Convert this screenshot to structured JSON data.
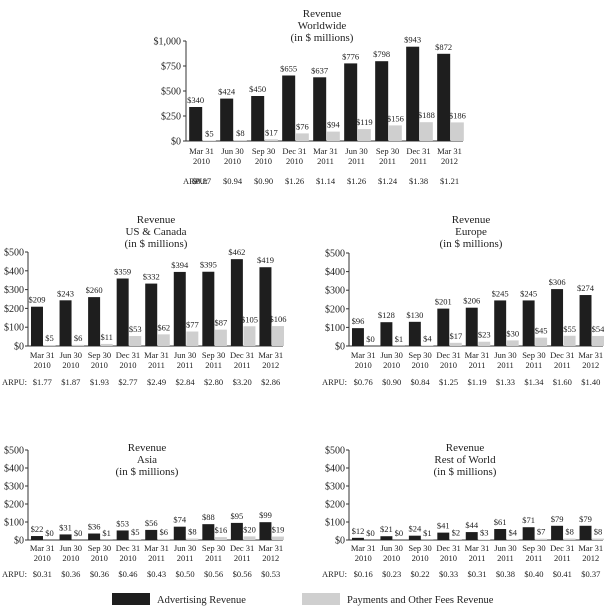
{
  "colors": {
    "advertising": "#1e1e1e",
    "payments": "#cfcfcf",
    "axis": "#333333"
  },
  "arpu_label": "ARPU:",
  "legend": [
    {
      "label": "Advertising Revenue",
      "color": "#1e1e1e"
    },
    {
      "label": "Payments and Other Fees Revenue",
      "color": "#cfcfcf"
    }
  ],
  "chart_data": [
    {
      "type": "bar",
      "title": [
        "Revenue",
        "Worldwide",
        "(in $ millions)"
      ],
      "categories": [
        [
          "Mar 31",
          "2010"
        ],
        [
          "Jun 30",
          "2010"
        ],
        [
          "Sep 30",
          "2010"
        ],
        [
          "Dec 31",
          "2010"
        ],
        [
          "Mar 31",
          "2011"
        ],
        [
          "Jun 30",
          "2011"
        ],
        [
          "Sep 30",
          "2011"
        ],
        [
          "Dec 31",
          "2011"
        ],
        [
          "Mar 31",
          "2012"
        ]
      ],
      "series": [
        {
          "name": "Advertising Revenue",
          "values": [
            340,
            424,
            450,
            655,
            637,
            776,
            798,
            943,
            872
          ],
          "labels": [
            "$340",
            "$424",
            "$450",
            "$655",
            "$637",
            "$776",
            "$798",
            "$943",
            "$872"
          ]
        },
        {
          "name": "Payments and Other Fees Revenue",
          "values": [
            5,
            8,
            17,
            76,
            94,
            119,
            156,
            188,
            186
          ],
          "labels": [
            "$5",
            "$8",
            "$17",
            "$76",
            "$94",
            "$119",
            "$156",
            "$188",
            "$186"
          ]
        }
      ],
      "ylim": [
        0,
        1000
      ],
      "yticks": [
        0,
        250,
        500,
        750,
        1000
      ],
      "ytick_labels": [
        "$0",
        "$250",
        "$500",
        "$750",
        "$1,000"
      ],
      "arpu": [
        "$0.87",
        "$0.94",
        "$0.90",
        "$1.26",
        "$1.14",
        "$1.26",
        "$1.24",
        "$1.38",
        "$1.21"
      ]
    },
    {
      "type": "bar",
      "title": [
        "Revenue",
        "US & Canada",
        "(in $ millions)"
      ],
      "categories": [
        [
          "Mar 31",
          "2010"
        ],
        [
          "Jun 30",
          "2010"
        ],
        [
          "Sep 30",
          "2010"
        ],
        [
          "Dec 31",
          "2010"
        ],
        [
          "Mar 31",
          "2011"
        ],
        [
          "Jun 30",
          "2011"
        ],
        [
          "Sep 30",
          "2011"
        ],
        [
          "Dec 31",
          "2011"
        ],
        [
          "Mar 31",
          "2012"
        ]
      ],
      "series": [
        {
          "name": "Advertising Revenue",
          "values": [
            209,
            243,
            260,
            359,
            332,
            394,
            395,
            462,
            419
          ],
          "labels": [
            "$209",
            "$243",
            "$260",
            "$359",
            "$332",
            "$394",
            "$395",
            "$462",
            "$419"
          ]
        },
        {
          "name": "Payments and Other Fees Revenue",
          "values": [
            5,
            6,
            11,
            53,
            62,
            77,
            87,
            105,
            106
          ],
          "labels": [
            "$5",
            "$6",
            "$11",
            "$53",
            "$62",
            "$77",
            "$87",
            "$105",
            "$106"
          ]
        }
      ],
      "ylim": [
        0,
        500
      ],
      "yticks": [
        0,
        100,
        200,
        300,
        400,
        500
      ],
      "ytick_labels": [
        "$0",
        "$100",
        "$200",
        "$300",
        "$400",
        "$500"
      ],
      "arpu": [
        "$1.77",
        "$1.87",
        "$1.93",
        "$2.77",
        "$2.49",
        "$2.84",
        "$2.80",
        "$3.20",
        "$2.86"
      ]
    },
    {
      "type": "bar",
      "title": [
        "Revenue",
        "Europe",
        "(in $ millions)"
      ],
      "categories": [
        [
          "Mar 31",
          "2010"
        ],
        [
          "Jun 30",
          "2010"
        ],
        [
          "Sep 30",
          "2010"
        ],
        [
          "Dec 31",
          "2010"
        ],
        [
          "Mar 31",
          "2011"
        ],
        [
          "Jun 30",
          "2011"
        ],
        [
          "Sep 30",
          "2011"
        ],
        [
          "Dec 31",
          "2011"
        ],
        [
          "Mar 31",
          "2012"
        ]
      ],
      "series": [
        {
          "name": "Advertising Revenue",
          "values": [
            96,
            128,
            130,
            201,
            206,
            245,
            245,
            306,
            274
          ],
          "labels": [
            "$96",
            "$128",
            "$130",
            "$201",
            "$206",
            "$245",
            "$245",
            "$306",
            "$274"
          ]
        },
        {
          "name": "Payments and Other Fees Revenue",
          "values": [
            0,
            1,
            4,
            17,
            23,
            30,
            45,
            55,
            54
          ],
          "labels": [
            "$0",
            "$1",
            "$4",
            "$17",
            "$23",
            "$30",
            "$45",
            "$55",
            "$54"
          ]
        }
      ],
      "ylim": [
        0,
        500
      ],
      "yticks": [
        0,
        100,
        200,
        300,
        400,
        500
      ],
      "ytick_labels": [
        "$0",
        "$100",
        "$200",
        "$300",
        "$400",
        "$500"
      ],
      "arpu": [
        "$0.76",
        "$0.90",
        "$0.84",
        "$1.25",
        "$1.19",
        "$1.33",
        "$1.34",
        "$1.60",
        "$1.40"
      ]
    },
    {
      "type": "bar",
      "title": [
        "Revenue",
        "Asia",
        "(in $ millions)"
      ],
      "categories": [
        [
          "Mar 31",
          "2010"
        ],
        [
          "Jun 30",
          "2010"
        ],
        [
          "Sep 30",
          "2010"
        ],
        [
          "Dec 31",
          "2010"
        ],
        [
          "Mar 31",
          "2011"
        ],
        [
          "Jun 30",
          "2011"
        ],
        [
          "Sep 30",
          "2011"
        ],
        [
          "Dec 31",
          "2011"
        ],
        [
          "Mar 31",
          "2012"
        ]
      ],
      "series": [
        {
          "name": "Advertising Revenue",
          "values": [
            22,
            31,
            36,
            53,
            56,
            74,
            88,
            95,
            99
          ],
          "labels": [
            "$22",
            "$31",
            "$36",
            "$53",
            "$56",
            "$74",
            "$88",
            "$95",
            "$99"
          ]
        },
        {
          "name": "Payments and Other Fees Revenue",
          "values": [
            0,
            0,
            1,
            5,
            6,
            8,
            16,
            20,
            19
          ],
          "labels": [
            "$0",
            "$0",
            "$1",
            "$5",
            "$6",
            "$8",
            "$16",
            "$20",
            "$19"
          ]
        }
      ],
      "ylim": [
        0,
        500
      ],
      "yticks": [
        0,
        100,
        200,
        300,
        400,
        500
      ],
      "ytick_labels": [
        "$0",
        "$100",
        "$200",
        "$300",
        "$400",
        "$500"
      ],
      "arpu": [
        "$0.31",
        "$0.36",
        "$0.36",
        "$0.46",
        "$0.43",
        "$0.50",
        "$0.56",
        "$0.56",
        "$0.53"
      ]
    },
    {
      "type": "bar",
      "title": [
        "Revenue",
        "Rest of World",
        "(in $ millions)"
      ],
      "categories": [
        [
          "Mar 31",
          "2010"
        ],
        [
          "Jun 30",
          "2010"
        ],
        [
          "Sep 30",
          "2010"
        ],
        [
          "Dec 31",
          "2010"
        ],
        [
          "Mar 31",
          "2011"
        ],
        [
          "Jun 30",
          "2011"
        ],
        [
          "Sep 30",
          "2011"
        ],
        [
          "Dec 31",
          "2011"
        ],
        [
          "Mar 31",
          "2012"
        ]
      ],
      "series": [
        {
          "name": "Advertising Revenue",
          "values": [
            12,
            21,
            24,
            41,
            44,
            61,
            71,
            79,
            79
          ],
          "labels": [
            "$12",
            "$21",
            "$24",
            "$41",
            "$44",
            "$61",
            "$71",
            "$79",
            "$79"
          ]
        },
        {
          "name": "Payments and Other Fees Revenue",
          "values": [
            0,
            0,
            1,
            2,
            3,
            4,
            7,
            8,
            8
          ],
          "labels": [
            "$0",
            "$0",
            "$1",
            "$2",
            "$3",
            "$4",
            "$7",
            "$8",
            "$8"
          ]
        }
      ],
      "ylim": [
        0,
        500
      ],
      "yticks": [
        0,
        100,
        200,
        300,
        400,
        500
      ],
      "ytick_labels": [
        "$0",
        "$100",
        "$200",
        "$300",
        "$400",
        "$500"
      ],
      "arpu": [
        "$0.16",
        "$0.23",
        "$0.22",
        "$0.33",
        "$0.31",
        "$0.38",
        "$0.40",
        "$0.41",
        "$0.37"
      ]
    }
  ]
}
